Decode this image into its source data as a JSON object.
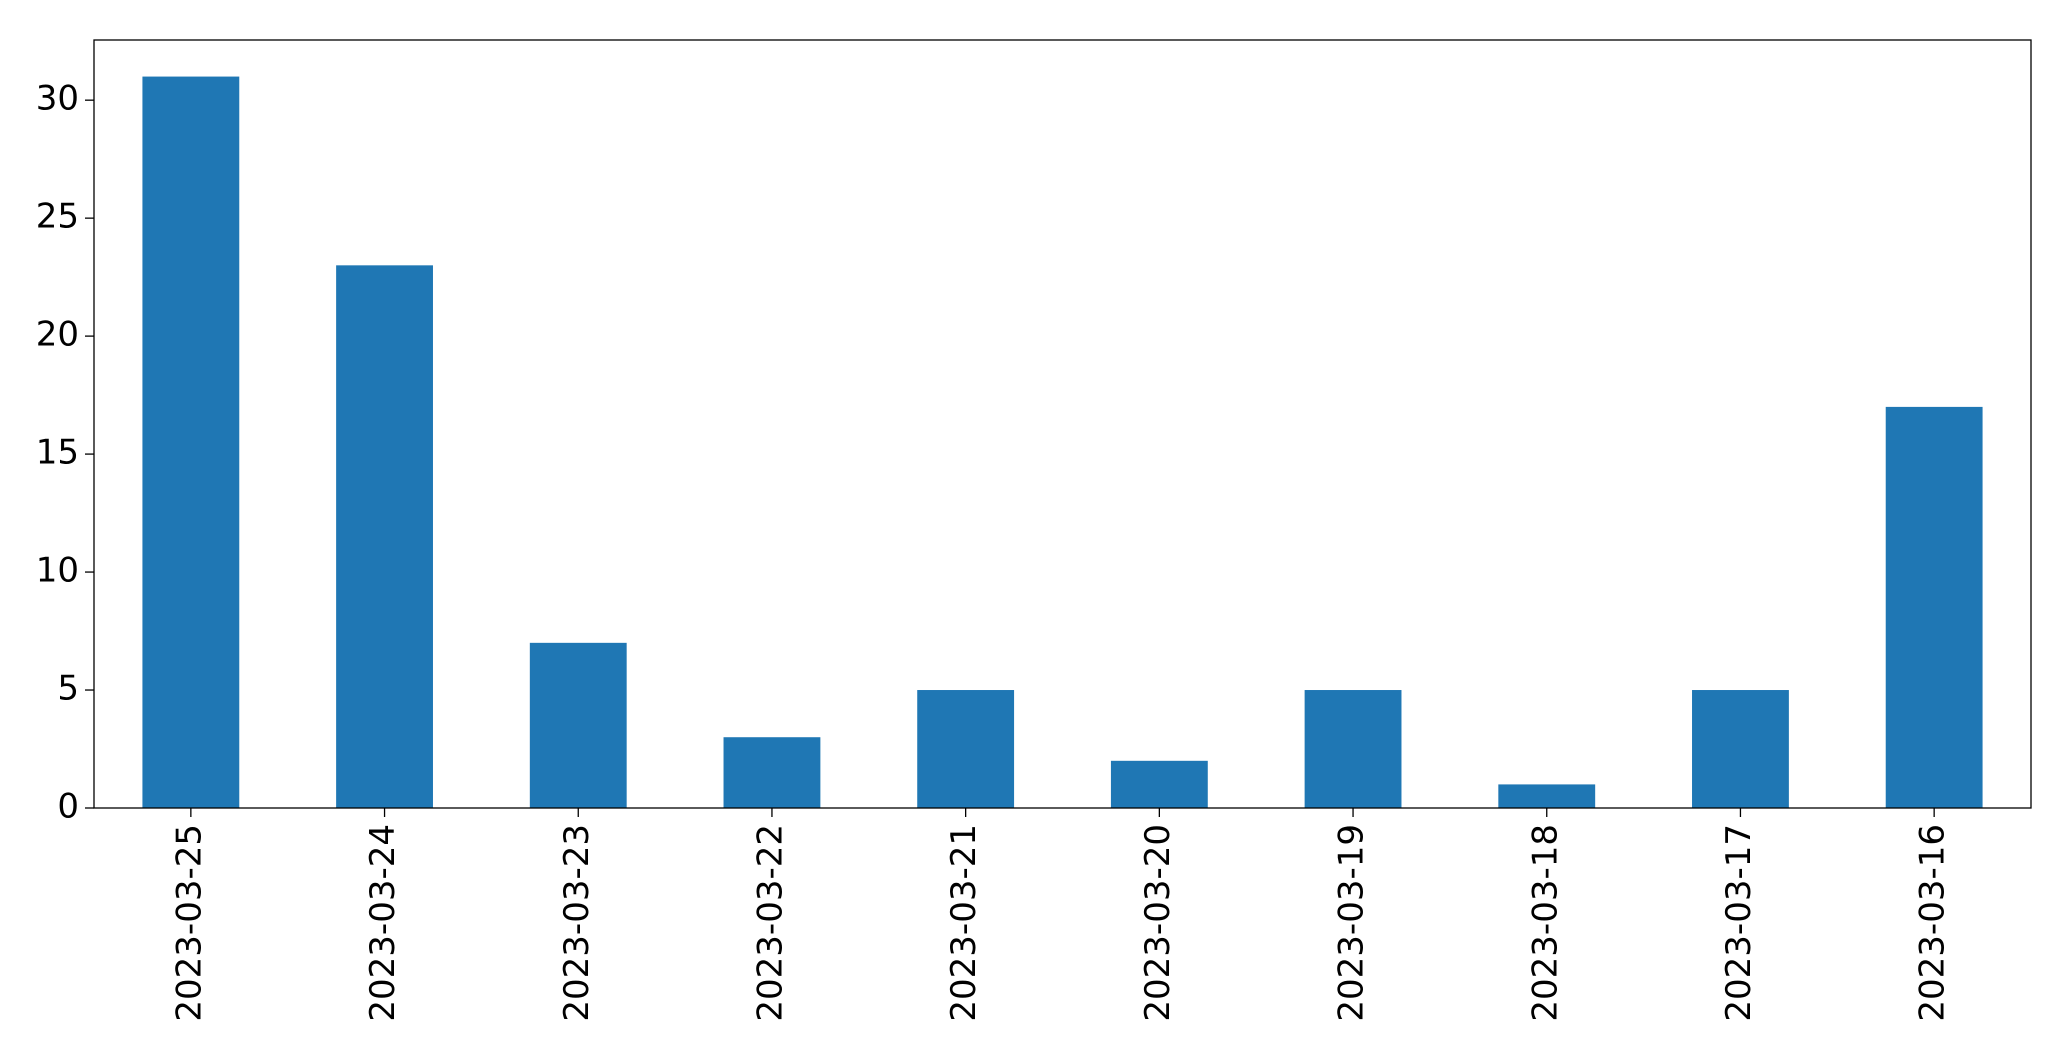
{
  "chart_data": {
    "type": "bar",
    "categories": [
      "2023-03-25",
      "2023-03-24",
      "2023-03-23",
      "2023-03-22",
      "2023-03-21",
      "2023-03-20",
      "2023-03-19",
      "2023-03-18",
      "2023-03-17",
      "2023-03-16"
    ],
    "values": [
      31,
      23,
      7,
      3,
      5,
      2,
      5,
      1,
      5,
      17
    ],
    "color": "#1f77b4",
    "ylim": [
      0,
      32.55
    ],
    "yticks": [
      0,
      5,
      10,
      15,
      20,
      25,
      30
    ],
    "grid": false
  }
}
